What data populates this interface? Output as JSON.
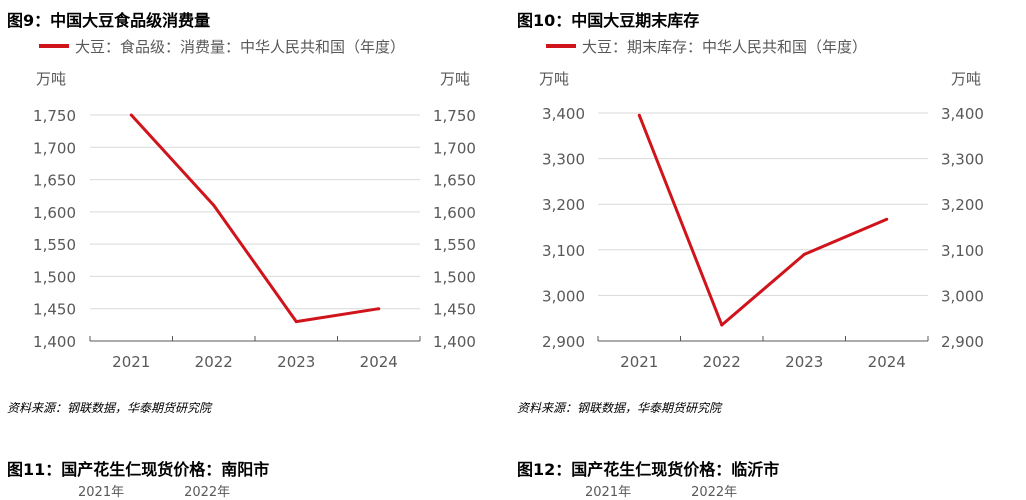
{
  "chart_data": [
    {
      "type": "line",
      "title": "图9：中国大豆食品级消费量",
      "series": [
        {
          "name": "大豆：食品级：消费量：中华人民共和国（年度）",
          "color": "#d0141b",
          "values": [
            1750,
            1610,
            1430,
            1450
          ]
        }
      ],
      "categories": [
        "2021",
        "2022",
        "2023",
        "2024"
      ],
      "y_unit_left": "万吨",
      "y_unit_right": "万吨",
      "ylim": [
        1400,
        1750
      ],
      "yticks": [
        1400,
        1450,
        1500,
        1550,
        1600,
        1650,
        1700,
        1750
      ],
      "ytick_labels": [
        "1,400",
        "1,450",
        "1,500",
        "1,550",
        "1,600",
        "1,650",
        "1,700",
        "1,750"
      ],
      "grid": true,
      "legend_position": "top-left",
      "source": "资料来源：钢联数据，华泰期货研究院"
    },
    {
      "type": "line",
      "title": "图10：中国大豆期末库存",
      "series": [
        {
          "name": "大豆：期末库存：中华人民共和国（年度）",
          "color": "#d0141b",
          "values": [
            3395,
            2935,
            3090,
            3167
          ]
        }
      ],
      "categories": [
        "2021",
        "2022",
        "2023",
        "2024"
      ],
      "y_unit_left": "万吨",
      "y_unit_right": "万吨",
      "ylim": [
        2900,
        3400
      ],
      "yticks": [
        2900,
        3000,
        3100,
        3200,
        3300,
        3400
      ],
      "ytick_labels": [
        "2,900",
        "3,000",
        "3,100",
        "3,200",
        "3,300",
        "3,400"
      ],
      "grid": true,
      "legend_position": "top-left",
      "source": "资料来源：钢联数据，华泰期货研究院"
    }
  ],
  "next_figures": {
    "left_title": "图11：国产花生仁现货价格：南阳市",
    "right_title": "图12：国产花生仁现货价格：临沂市",
    "legend_items": [
      "2021年",
      "2022年"
    ]
  }
}
